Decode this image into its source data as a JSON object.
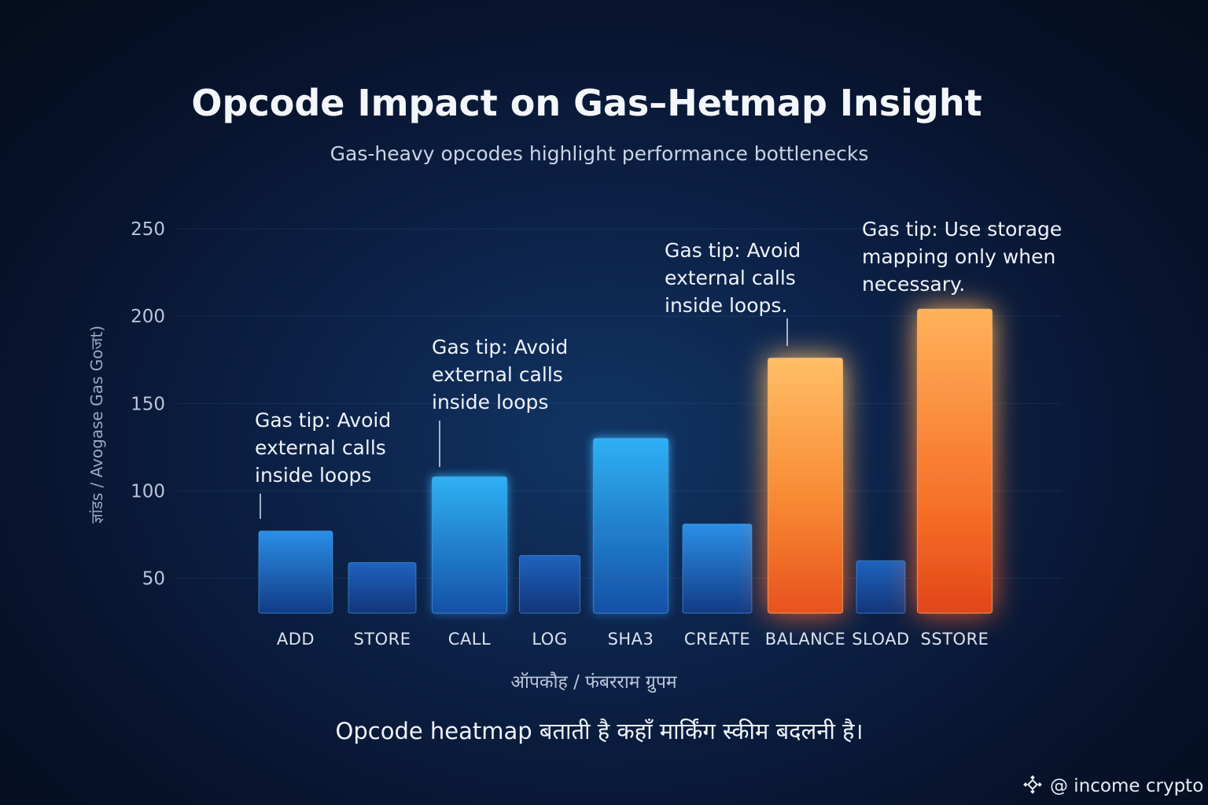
{
  "chart_data": {
    "type": "bar",
    "title": "Opcode Impact on Gas–Hetmap Insight",
    "subtitle": "Gas-heavy opcodes highlight performance bottlenecks",
    "ylabel": "ज्ञांडs / Avogase Gas Goजt)",
    "xlabel": "ऑपकौह / फंबरराम ग्रुपम",
    "categories": [
      "ADD",
      "STORE",
      "CALL",
      "LOG",
      "SHA3",
      "CREATE",
      "BALANCE",
      "SLOAD",
      "SSTORE"
    ],
    "values": [
      77,
      59,
      108,
      63,
      130,
      81,
      176,
      60,
      204
    ],
    "highlight": [
      false,
      false,
      false,
      false,
      false,
      false,
      true,
      false,
      true
    ],
    "ylim": [
      30,
      250
    ],
    "yticks": [
      50,
      100,
      150,
      200,
      250
    ],
    "grid": true,
    "colors": {
      "normal": "#1f7fe0",
      "normal_bright": "#2fa8f0",
      "hot_top": "#ffb860",
      "hot_bottom": "#f2551c"
    },
    "annotations": [
      {
        "category": "ADD",
        "lines": [
          "Gas tip: Avoid",
          "external calls",
          "inside loops"
        ]
      },
      {
        "category": "CALL",
        "lines": [
          "Gas tip: Avoid",
          "external calls",
          "inside loops"
        ]
      },
      {
        "category": "BALANCE",
        "lines": [
          "Gas tip: Avoid",
          "external calls",
          "inside loops."
        ]
      },
      {
        "category": "SSTORE",
        "lines": [
          "Gas tip: Use storage",
          "mapping only when",
          "necessary."
        ]
      }
    ]
  },
  "caption": "Opcode heatmap बताती है कहाँ मार्किंग स्कीम बदलनी है।",
  "watermark": {
    "icon": "binance-logo-icon",
    "text": "@ income crypto"
  }
}
